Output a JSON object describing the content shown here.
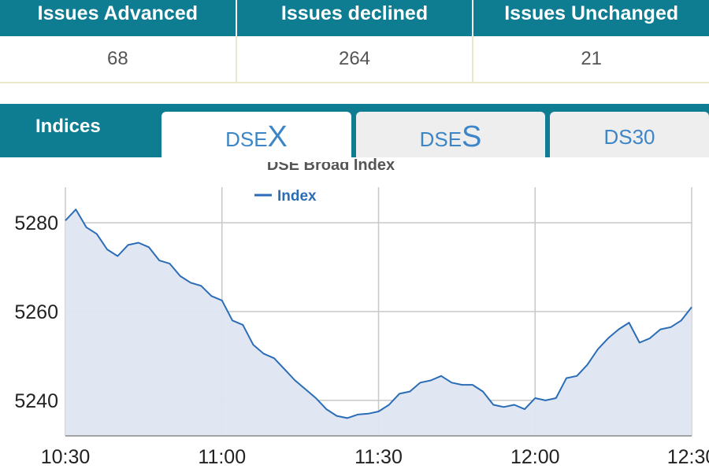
{
  "summary": {
    "headers": [
      "Issues Advanced",
      "Issues declined",
      "Issues Unchanged"
    ],
    "values": [
      "68",
      "264",
      "21"
    ]
  },
  "tabs": {
    "indices_label": "Indices",
    "dsex": {
      "prefix": "DSE",
      "suffix": "X"
    },
    "dses": {
      "prefix": "DSE",
      "suffix": "S"
    },
    "ds30": "DS30",
    "active": "DSEX"
  },
  "colors": {
    "accent": "#0e7d91",
    "line": "#2a6db6",
    "fill": "#dfe6f1",
    "tab_text": "#3c86c8"
  },
  "chart_data": {
    "type": "area",
    "title": "DSE Broad Index",
    "legend": {
      "label": "Index",
      "placement": "top-center"
    },
    "xlabel": "",
    "ylabel": "",
    "x_ticks": [
      "10:30",
      "11:00",
      "11:30",
      "12:00",
      "12:30"
    ],
    "y_ticks": [
      5240,
      5260,
      5280
    ],
    "ylim": [
      5232,
      5288
    ],
    "grid": true,
    "series": [
      {
        "name": "Index",
        "x": [
          "10:30",
          "10:32",
          "10:34",
          "10:36",
          "10:38",
          "10:40",
          "10:42",
          "10:44",
          "10:46",
          "10:48",
          "10:50",
          "10:52",
          "10:54",
          "10:56",
          "10:58",
          "11:00",
          "11:02",
          "11:04",
          "11:06",
          "11:08",
          "11:10",
          "11:12",
          "11:14",
          "11:16",
          "11:18",
          "11:20",
          "11:22",
          "11:24",
          "11:26",
          "11:28",
          "11:30",
          "11:32",
          "11:34",
          "11:36",
          "11:38",
          "11:40",
          "11:42",
          "11:44",
          "11:46",
          "11:48",
          "11:50",
          "11:52",
          "11:54",
          "11:56",
          "11:58",
          "12:00",
          "12:02",
          "12:04",
          "12:06",
          "12:08",
          "12:10",
          "12:12",
          "12:14",
          "12:16",
          "12:18",
          "12:20",
          "12:22",
          "12:24",
          "12:26",
          "12:28",
          "12:30"
        ],
        "values": [
          5280.5,
          5283,
          5279,
          5277.5,
          5274,
          5272.5,
          5275,
          5275.5,
          5274.5,
          5271.5,
          5270.8,
          5268,
          5266.5,
          5265.8,
          5263.5,
          5262.5,
          5258,
          5257,
          5252.5,
          5250.5,
          5249.5,
          5247,
          5244.5,
          5242.5,
          5240.5,
          5238,
          5236.5,
          5236,
          5236.8,
          5237,
          5237.5,
          5239,
          5241.5,
          5242,
          5244,
          5244.5,
          5245.5,
          5244,
          5243.5,
          5243.5,
          5242,
          5239,
          5238.5,
          5239,
          5238,
          5240.5,
          5240,
          5240.5,
          5245,
          5245.5,
          5248,
          5251.5,
          5254,
          5256,
          5257.5,
          5253,
          5254,
          5256,
          5256.5,
          5258,
          5261
        ]
      }
    ]
  }
}
